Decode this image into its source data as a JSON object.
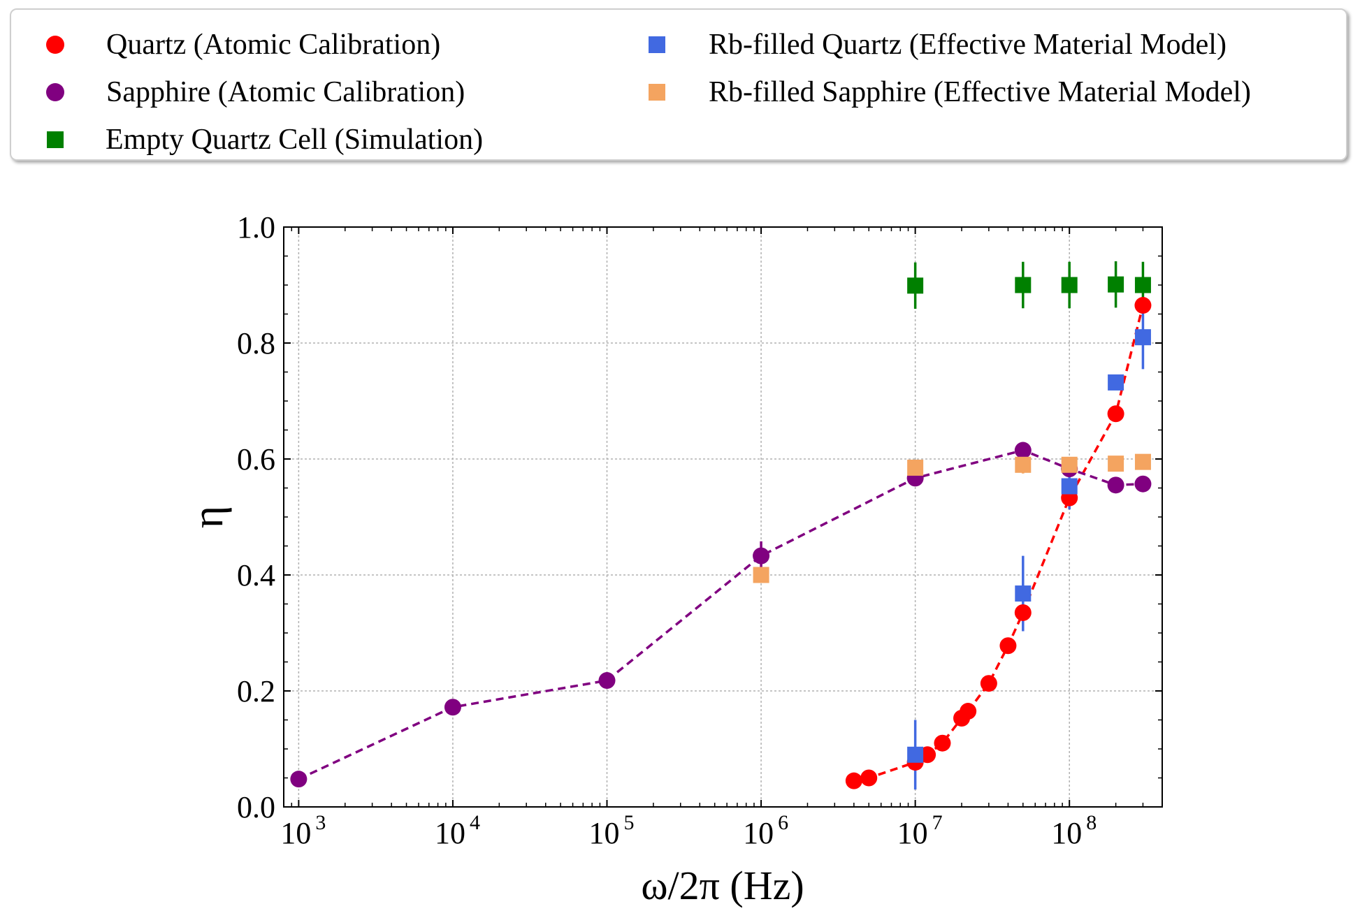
{
  "chart_data": {
    "type": "scatter",
    "title": "",
    "xlabel": "ω/2π (Hz)",
    "ylabel": "η",
    "xscale": "log",
    "xlim": [
      800,
      400000000
    ],
    "ylim": [
      0,
      1.0
    ],
    "grid": true,
    "legend_position": "top (outside plot)",
    "y_ticks": [
      "0.0",
      "0.2",
      "0.4",
      "0.6",
      "0.8",
      "1.0"
    ],
    "x_ticks": [
      {
        "value": 1000,
        "base": "10",
        "exp": "3"
      },
      {
        "value": 10000,
        "base": "10",
        "exp": "4"
      },
      {
        "value": 100000,
        "base": "10",
        "exp": "5"
      },
      {
        "value": 1000000,
        "base": "10",
        "exp": "6"
      },
      {
        "value": 10000000,
        "base": "10",
        "exp": "7"
      },
      {
        "value": 100000000,
        "base": "10",
        "exp": "8"
      }
    ],
    "series": [
      {
        "name": "Quartz (Atomic Calibration)",
        "marker": "circle",
        "color": "#ff0000",
        "line": true,
        "points": [
          {
            "x": 4000000,
            "y": 0.045
          },
          {
            "x": 5000000,
            "y": 0.05
          },
          {
            "x": 10000000,
            "y": 0.077
          },
          {
            "x": 12000000,
            "y": 0.09
          },
          {
            "x": 15000000,
            "y": 0.11
          },
          {
            "x": 20000000,
            "y": 0.153
          },
          {
            "x": 22000000,
            "y": 0.165
          },
          {
            "x": 30000000,
            "y": 0.213
          },
          {
            "x": 40000000,
            "y": 0.278
          },
          {
            "x": 50000000,
            "y": 0.335
          },
          {
            "x": 100000000,
            "y": 0.533
          },
          {
            "x": 200000000,
            "y": 0.678
          },
          {
            "x": 300000000,
            "y": 0.865
          }
        ]
      },
      {
        "name": "Sapphire (Atomic Calibration)",
        "marker": "circle",
        "color": "#800080",
        "line": true,
        "points": [
          {
            "x": 1000,
            "y": 0.048,
            "err": 0.005
          },
          {
            "x": 10000,
            "y": 0.172,
            "err": 0.005
          },
          {
            "x": 100000,
            "y": 0.218,
            "err": 0.012
          },
          {
            "x": 1000000,
            "y": 0.433,
            "err": 0.025
          },
          {
            "x": 10000000,
            "y": 0.567,
            "err": 0.01
          },
          {
            "x": 50000000,
            "y": 0.615,
            "err": 0.005
          },
          {
            "x": 100000000,
            "y": 0.583,
            "err": 0.005
          },
          {
            "x": 200000000,
            "y": 0.555,
            "err": 0.005
          },
          {
            "x": 300000000,
            "y": 0.557,
            "err": 0.005
          }
        ]
      },
      {
        "name": "Empty Quartz Cell (Simulation)",
        "marker": "square",
        "color": "#008000",
        "line": false,
        "points": [
          {
            "x": 10000000,
            "y": 0.899,
            "err": 0.04
          },
          {
            "x": 50000000,
            "y": 0.9,
            "err": 0.04
          },
          {
            "x": 100000000,
            "y": 0.9,
            "err": 0.04
          },
          {
            "x": 200000000,
            "y": 0.901,
            "err": 0.04
          },
          {
            "x": 300000000,
            "y": 0.9,
            "err": 0.04
          }
        ]
      },
      {
        "name": "Rb-filled Quartz (Effective Material Model)",
        "marker": "square",
        "color": "#4169e1",
        "line": false,
        "points": [
          {
            "x": 10000000,
            "y": 0.09,
            "err": 0.06
          },
          {
            "x": 50000000,
            "y": 0.368,
            "err": 0.065
          },
          {
            "x": 100000000,
            "y": 0.553,
            "err": 0.04
          },
          {
            "x": 200000000,
            "y": 0.732,
            "err": 0.005
          },
          {
            "x": 300000000,
            "y": 0.81,
            "err": 0.055
          }
        ]
      },
      {
        "name": "Rb-filled Sapphire (Effective Material Model)",
        "marker": "square",
        "color": "#f4a460",
        "line": false,
        "points": [
          {
            "x": 1000000,
            "y": 0.4,
            "err": 0.005
          },
          {
            "x": 10000000,
            "y": 0.585,
            "err": 0.012
          },
          {
            "x": 50000000,
            "y": 0.59,
            "err": 0.015
          },
          {
            "x": 100000000,
            "y": 0.59,
            "err": 0.013
          },
          {
            "x": 200000000,
            "y": 0.592,
            "err": 0.013
          },
          {
            "x": 300000000,
            "y": 0.595,
            "err": 0.013
          }
        ]
      }
    ]
  }
}
